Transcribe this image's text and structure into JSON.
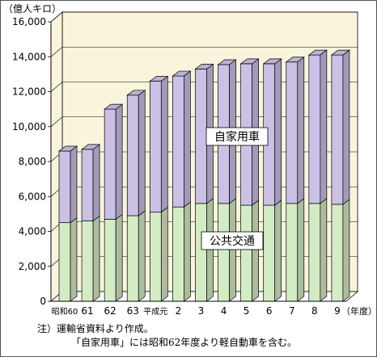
{
  "chart_data": {
    "type": "bar",
    "stacked": true,
    "style": "3d",
    "y_unit_label": "（億人キロ）",
    "x_unit_label": "（年度）",
    "ylim": [
      0,
      16000
    ],
    "y_ticks": [
      0,
      2000,
      4000,
      6000,
      8000,
      10000,
      12000,
      14000,
      16000
    ],
    "y_tick_labels": [
      "0",
      "2,000",
      "4,000",
      "6,000",
      "8,000",
      "10,000",
      "12,000",
      "14,000",
      "16,000"
    ],
    "categories": [
      "昭和60",
      "61",
      "62",
      "63",
      "平成元",
      "2",
      "3",
      "4",
      "5",
      "6",
      "7",
      "8",
      "9"
    ],
    "series": [
      {
        "name": "公共交通",
        "color": "#d4ecc4",
        "values": [
          4500,
          4600,
          4700,
          4900,
          5100,
          5400,
          5600,
          5600,
          5500,
          5500,
          5600,
          5600,
          5550
        ]
      },
      {
        "name": "自家用車",
        "color": "#cbc1e6",
        "values": [
          4100,
          4100,
          6300,
          6900,
          7500,
          7500,
          7700,
          7950,
          8100,
          8100,
          8100,
          8500,
          8550
        ]
      }
    ],
    "wall_color": "#fbf4dc",
    "grid": true,
    "legend_position": "inside-labels"
  },
  "notes": {
    "line1": "注）運輸省資料より作成。",
    "line2": "「自家用車」には昭和62年度より軽自動車を含む。"
  }
}
